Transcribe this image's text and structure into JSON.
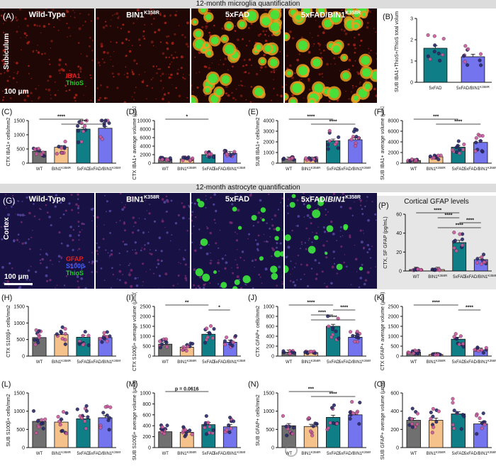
{
  "banners": {
    "microglia": "12-month microglia quantification",
    "astrocyte": "12-month astrocyte quantification"
  },
  "microglia_images": {
    "letter": "(A)",
    "region": "Subiculum",
    "scale": "100 μm",
    "legend": [
      {
        "text": "IBA1",
        "color": "#e02020"
      },
      {
        "text": "ThioS",
        "color": "#20d020"
      }
    ],
    "titles": [
      {
        "main": "Wild-Type",
        "sup": ""
      },
      {
        "main": "BIN1",
        "sup": "K358R"
      },
      {
        "main": "5xFAD",
        "sup": ""
      },
      {
        "main": "5xFAD/BIN1",
        "sup": "K358R"
      }
    ]
  },
  "astro_images": {
    "letter": "(G)",
    "region": "Cortex",
    "scale": "100 μm",
    "legend": [
      {
        "text": "GFAP",
        "color": "#e02020"
      },
      {
        "text": "S100β",
        "color": "#4060ff"
      },
      {
        "text": "ThioS",
        "color": "#20d020"
      }
    ],
    "titles": [
      {
        "main": "Wild-Type",
        "sup": ""
      },
      {
        "main": "BIN1",
        "sup": "K358R"
      },
      {
        "main": "5xFAD",
        "sup": ""
      },
      {
        "main": "5xFAD/BIN1",
        "sup": "K358R"
      }
    ]
  },
  "colors": {
    "WT": "#707070",
    "BIN1": "#f5c28c",
    "5xFAD": "#0f7e86",
    "5xFAD/BIN1": "#7474ee",
    "dot": "#c85a9c",
    "dot_dark": "#2a2a6a"
  },
  "groups4": [
    "WT",
    "BIN1K358R",
    "5xFAD",
    "5xFAD/BIN1K358R"
  ],
  "chart_data": [
    {
      "id": "B",
      "letter": "(B)",
      "type": "bar",
      "ylabel": "SUB IBA1+ThioS+/ThioS total volume",
      "categories": [
        "5xFAD",
        "5xFAD/BIN1K358R"
      ],
      "values": [
        1.6,
        1.2
      ],
      "ylim": [
        0,
        3
      ],
      "yticks": [
        0,
        1,
        2,
        3
      ],
      "sig": []
    },
    {
      "id": "C",
      "letter": "(C)",
      "type": "bar",
      "ylabel": "CTX IBA1+ cells/mm2",
      "categories": [
        "WT",
        "BIN1K358R",
        "5xFAD",
        "5xFAD/BIN1K358R"
      ],
      "values": [
        420,
        560,
        1200,
        1230
      ],
      "ylim": [
        0,
        1500
      ],
      "yticks": [
        0,
        500,
        1000,
        1500
      ],
      "sig": [
        {
          "a": 0,
          "b": 2,
          "label": "****"
        },
        {
          "a": 1,
          "b": 3,
          "label": "****"
        }
      ]
    },
    {
      "id": "D",
      "letter": "(D)",
      "type": "bar",
      "ylabel": "CTX IBA1+ average volume (μm3)",
      "categories": [
        "WT",
        "BIN1K358R",
        "5xFAD",
        "5xFAD/BIN1K358R"
      ],
      "values": [
        900,
        1000,
        2000,
        2300
      ],
      "ylim": [
        0,
        10000
      ],
      "yticks": [
        0,
        2000,
        4000,
        6000,
        8000,
        10000
      ],
      "sig": [
        {
          "a": 0,
          "b": 2,
          "label": "*"
        }
      ]
    },
    {
      "id": "E",
      "letter": "(E)",
      "type": "bar",
      "ylabel": "SUB IBA1+ cells/mm2",
      "categories": [
        "WT",
        "BIN1K358R",
        "5xFAD",
        "5xFAD/BIN1K358R"
      ],
      "values": [
        400,
        400,
        2100,
        2200
      ],
      "ylim": [
        0,
        4000
      ],
      "yticks": [
        0,
        1000,
        2000,
        3000,
        4000
      ],
      "sig": [
        {
          "a": 0,
          "b": 2,
          "label": "****"
        },
        {
          "a": 1,
          "b": 3,
          "label": "****"
        }
      ]
    },
    {
      "id": "F",
      "letter": "(F)",
      "type": "bar",
      "ylabel": "SUB IBA1+ average volume (μm3)",
      "categories": [
        "WT",
        "BIN1K358R",
        "5xFAD",
        "5xFAD/BIN1K358R"
      ],
      "values": [
        500,
        1200,
        3000,
        3900
      ],
      "ylim": [
        0,
        8000
      ],
      "yticks": [
        0,
        2000,
        4000,
        6000,
        8000
      ],
      "sig": [
        {
          "a": 0,
          "b": 2,
          "label": "***"
        },
        {
          "a": 1,
          "b": 3,
          "label": "****"
        }
      ]
    },
    {
      "id": "P",
      "letter": "(P)",
      "type": "bar",
      "title": "Cortical GFAP levels",
      "ylabel": "CTX, SF GFAP (pg/mL)",
      "categories": [
        "WT",
        "BIN1K358R",
        "5xFAD",
        "5xFAD/BIN1K358R"
      ],
      "values": [
        1.5,
        1.5,
        30,
        12
      ],
      "ylim": [
        0,
        60
      ],
      "yticks": [
        0,
        20,
        40,
        60
      ],
      "sig": [
        {
          "a": 0,
          "b": 2,
          "label": "****"
        },
        {
          "a": 1,
          "b": 2,
          "label": "****"
        },
        {
          "a": 2,
          "b": 3,
          "label": "****"
        },
        {
          "a": 1,
          "b": 3,
          "label": "****"
        }
      ]
    },
    {
      "id": "H",
      "letter": "(H)",
      "type": "bar",
      "ylabel": "CTX S100β+ cells/mm2",
      "categories": [
        "WT",
        "BIN1K358R",
        "5xFAD",
        "5xFAD/BIN1K358R"
      ],
      "values": [
        560,
        650,
        570,
        560
      ],
      "ylim": [
        0,
        1500
      ],
      "yticks": [
        0,
        500,
        1000,
        1500
      ],
      "sig": []
    },
    {
      "id": "I",
      "letter": "(I)",
      "type": "bar",
      "ylabel": "CTX S100β+ average volume (μm3)",
      "categories": [
        "WT",
        "BIN1K358R",
        "5xFAD",
        "5xFAD/BIN1K358R"
      ],
      "values": [
        600,
        450,
        1100,
        700
      ],
      "ylim": [
        0,
        2500
      ],
      "yticks": [
        0,
        500,
        1000,
        1500,
        2000,
        2500
      ],
      "sig": [
        {
          "a": 0,
          "b": 2,
          "label": "**"
        },
        {
          "a": 2,
          "b": 3,
          "label": "*"
        }
      ]
    },
    {
      "id": "J",
      "letter": "(J)",
      "type": "bar",
      "ylabel": "CTX GFAP+ cells/mm2",
      "categories": [
        "WT",
        "BIN1K358R",
        "5xFAD",
        "5xFAD/BIN1K358R"
      ],
      "values": [
        80,
        70,
        600,
        380
      ],
      "ylim": [
        0,
        1000
      ],
      "yticks": [
        0,
        200,
        400,
        600,
        800,
        1000
      ],
      "sig": [
        {
          "a": 0,
          "b": 2,
          "label": "****"
        },
        {
          "a": 2,
          "b": 3,
          "label": "****"
        },
        {
          "a": 1,
          "b": 2,
          "label": "****"
        },
        {
          "a": 1,
          "b": 3,
          "label": "****"
        }
      ]
    },
    {
      "id": "K",
      "letter": "(K)",
      "type": "bar",
      "ylabel": "CTX GFAP+ average volume (μm3)",
      "categories": [
        "WT",
        "BIN1K358R",
        "5xFAD",
        "5xFAD/BIN1K358R"
      ],
      "values": [
        200,
        80,
        850,
        300
      ],
      "ylim": [
        0,
        2500
      ],
      "yticks": [
        0,
        500,
        1000,
        1500,
        2000,
        2500
      ],
      "sig": [
        {
          "a": 0,
          "b": 2,
          "label": "****"
        },
        {
          "a": 2,
          "b": 3,
          "label": "****"
        }
      ]
    },
    {
      "id": "L",
      "letter": "(L)",
      "type": "bar",
      "ylabel": "SUB S100β+ cells/mm2",
      "categories": [
        "WT",
        "BIN1K358R",
        "5xFAD",
        "5xFAD/BIN1K358R"
      ],
      "values": [
        720,
        700,
        790,
        820
      ],
      "ylim": [
        0,
        1500
      ],
      "yticks": [
        0,
        500,
        1000,
        1500
      ],
      "sig": []
    },
    {
      "id": "M",
      "letter": "(M)",
      "type": "bar",
      "ylabel": "SUB S100β+ average volume (μm3)",
      "categories": [
        "WT",
        "BIN1K358R",
        "5xFAD",
        "5xFAD/BIN1K358R"
      ],
      "values": [
        290,
        280,
        420,
        380
      ],
      "ylim": [
        0,
        1000
      ],
      "yticks": [
        0,
        200,
        400,
        600,
        800,
        1000
      ],
      "sig": [
        {
          "a": 0,
          "b": 2,
          "label": "p = 0.0616"
        }
      ]
    },
    {
      "id": "N",
      "letter": "(N)",
      "type": "bar",
      "ylabel": "SUB GFAP+ cells/mm2",
      "categories": [
        "WT",
        "BIN1K358R",
        "5xFAD",
        "5xFAD/BIN1K358R"
      ],
      "values": [
        600,
        580,
        830,
        900
      ],
      "ylim": [
        0,
        1500
      ],
      "yticks": [
        0,
        500,
        1000,
        1500
      ],
      "sig": [
        {
          "a": 0,
          "b": 2,
          "label": "***"
        },
        {
          "a": 1,
          "b": 3,
          "label": "****"
        }
      ]
    },
    {
      "id": "O",
      "letter": "(O)",
      "type": "bar",
      "ylabel": "SUB GFAP+ average volume (μm3)",
      "categories": [
        "WT",
        "BIN1K358R",
        "5xFAD",
        "5xFAD/BIN1K358R"
      ],
      "values": [
        300,
        300,
        370,
        260
      ],
      "ylim": [
        0,
        600
      ],
      "yticks": [
        0,
        200,
        400,
        600
      ],
      "sig": []
    }
  ]
}
